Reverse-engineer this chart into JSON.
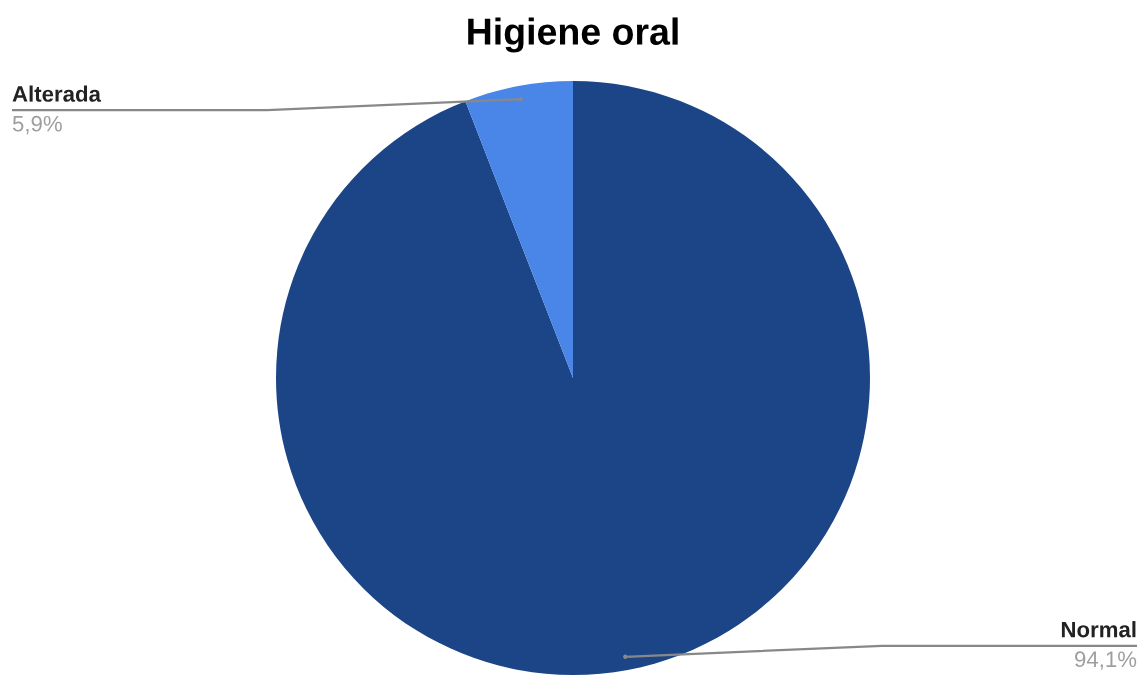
{
  "chart_data": {
    "type": "pie",
    "title": "Higiene oral",
    "categories": [
      "Normal",
      "Alterada"
    ],
    "values": [
      94.1,
      5.9
    ],
    "colors": [
      "#1c4587",
      "#4a86e8"
    ],
    "value_labels": [
      "94,1%",
      "5,9%"
    ]
  }
}
